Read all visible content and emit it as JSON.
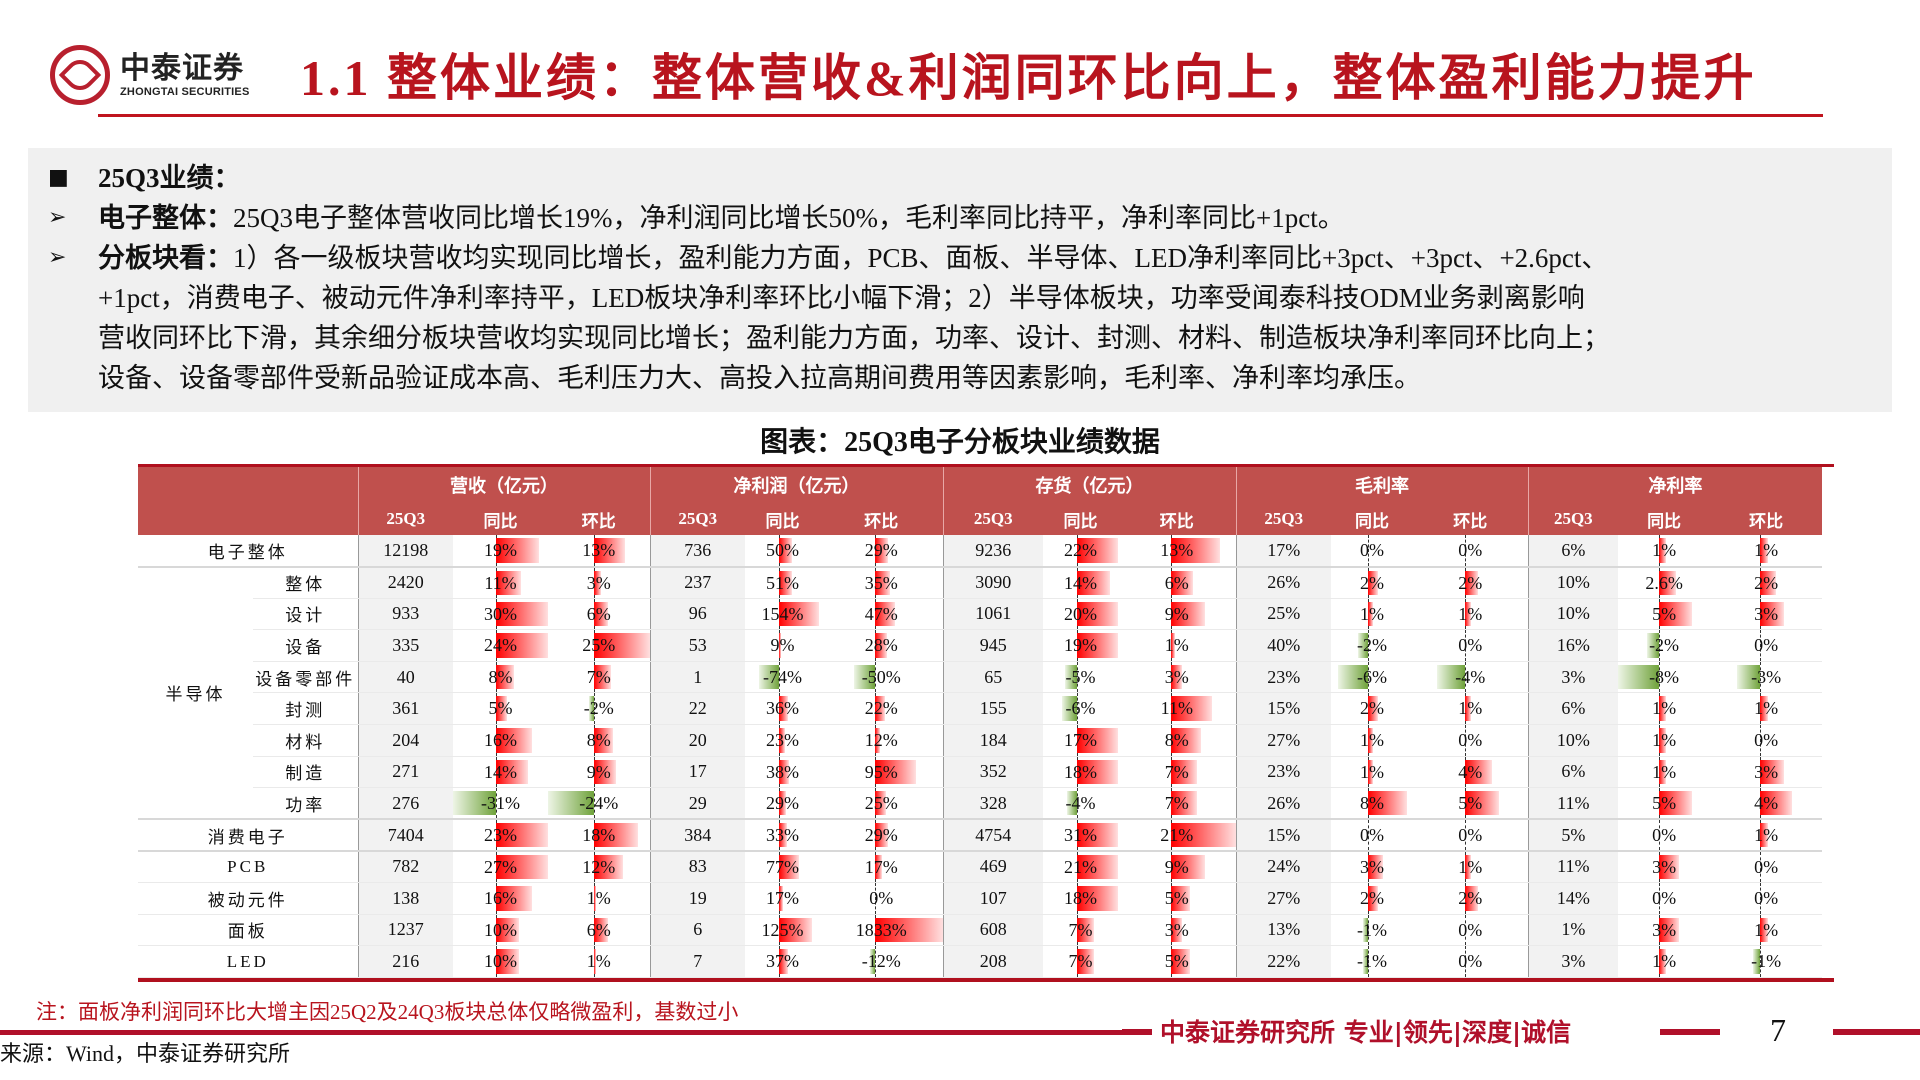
{
  "header": {
    "logo_cn": "中泰证券",
    "logo_en": "ZHONGTAI SECURITIES",
    "title": "1.1 整体业绩：整体营收&利润同环比向上，整体盈利能力提升"
  },
  "summary": {
    "heading": "25Q3业绩：",
    "items": [
      {
        "label": "电子整体：",
        "text": "25Q3电子整体营收同比增长19%，净利润同比增长50%，毛利率同比持平，净利率同比+1pct。"
      },
      {
        "label": "分板块看：",
        "lines": [
          "1）各一级板块营收均实现同比增长，盈利能力方面，PCB、面板、半导体、LED净利率同比+3pct、+3pct、+2.6pct、",
          "+1pct，消费电子、被动元件净利率持平，LED板块净利率环比小幅下滑；2）半导体板块，功率受闻泰科技ODM业务剥离影响",
          "营收同环比下滑，其余细分板块营收均实现同比增长；盈利能力方面，功率、设计、封测、材料、制造板块净利率同环比向上；",
          "设备、设备零部件受新品验证成本高、毛利压力大、高投入拉高期间费用等因素影响，毛利率、净利率均承压。"
        ]
      }
    ]
  },
  "chart_title": "图表：25Q3电子分板块业绩数据",
  "table": {
    "groups": [
      "营收（亿元）",
      "净利润（亿元）",
      "存货（亿元）",
      "毛利率",
      "净利率"
    ],
    "subheaders": [
      "25Q3",
      "同比",
      "环比"
    ],
    "rows": [
      {
        "name": "电子整体",
        "group": "",
        "major": true,
        "rev": [
          "12198",
          "19%",
          "13%"
        ],
        "np": [
          "736",
          "50%",
          "29%"
        ],
        "inv": [
          "9236",
          "22%",
          "13%"
        ],
        "gm": [
          "17%",
          "0%",
          "0%"
        ],
        "nm": [
          "6%",
          "1%",
          "1%"
        ]
      },
      {
        "name": "整体",
        "group": "半导体",
        "rev": [
          "2420",
          "11%",
          "3%"
        ],
        "np": [
          "237",
          "51%",
          "35%"
        ],
        "inv": [
          "3090",
          "14%",
          "6%"
        ],
        "gm": [
          "26%",
          "2%",
          "2%"
        ],
        "nm": [
          "10%",
          "2.6%",
          "2%"
        ]
      },
      {
        "name": "设计",
        "group": "半导体",
        "rev": [
          "933",
          "30%",
          "6%"
        ],
        "np": [
          "96",
          "154%",
          "47%"
        ],
        "inv": [
          "1061",
          "20%",
          "9%"
        ],
        "gm": [
          "25%",
          "1%",
          "1%"
        ],
        "nm": [
          "10%",
          "5%",
          "3%"
        ]
      },
      {
        "name": "设备",
        "group": "半导体",
        "rev": [
          "335",
          "24%",
          "25%"
        ],
        "np": [
          "53",
          "9%",
          "28%"
        ],
        "inv": [
          "945",
          "19%",
          "1%"
        ],
        "gm": [
          "40%",
          "-2%",
          "0%"
        ],
        "nm": [
          "16%",
          "-2%",
          "0%"
        ]
      },
      {
        "name": "设备零部件",
        "group": "半导体",
        "rev": [
          "40",
          "8%",
          "7%"
        ],
        "np": [
          "1",
          "-74%",
          "-50%"
        ],
        "inv": [
          "65",
          "-5%",
          "3%"
        ],
        "gm": [
          "23%",
          "-6%",
          "-4%"
        ],
        "nm": [
          "3%",
          "-8%",
          "-3%"
        ]
      },
      {
        "name": "封测",
        "group": "半导体",
        "rev": [
          "361",
          "5%",
          "-2%"
        ],
        "np": [
          "22",
          "36%",
          "22%"
        ],
        "inv": [
          "155",
          "-6%",
          "11%"
        ],
        "gm": [
          "15%",
          "2%",
          "1%"
        ],
        "nm": [
          "6%",
          "1%",
          "1%"
        ]
      },
      {
        "name": "材料",
        "group": "半导体",
        "rev": [
          "204",
          "16%",
          "8%"
        ],
        "np": [
          "20",
          "23%",
          "12%"
        ],
        "inv": [
          "184",
          "17%",
          "8%"
        ],
        "gm": [
          "27%",
          "1%",
          "0%"
        ],
        "nm": [
          "10%",
          "1%",
          "0%"
        ]
      },
      {
        "name": "制造",
        "group": "半导体",
        "rev": [
          "271",
          "14%",
          "9%"
        ],
        "np": [
          "17",
          "38%",
          "95%"
        ],
        "inv": [
          "352",
          "18%",
          "7%"
        ],
        "gm": [
          "23%",
          "1%",
          "4%"
        ],
        "nm": [
          "6%",
          "1%",
          "3%"
        ]
      },
      {
        "name": "功率",
        "group": "半导体",
        "major": true,
        "rev": [
          "276",
          "-31%",
          "-24%"
        ],
        "np": [
          "29",
          "29%",
          "25%"
        ],
        "inv": [
          "328",
          "-4%",
          "7%"
        ],
        "gm": [
          "26%",
          "8%",
          "5%"
        ],
        "nm": [
          "11%",
          "5%",
          "4%"
        ]
      },
      {
        "name": "消费电子",
        "group": "",
        "major": true,
        "rev": [
          "7404",
          "23%",
          "18%"
        ],
        "np": [
          "384",
          "33%",
          "29%"
        ],
        "inv": [
          "4754",
          "31%",
          "21%"
        ],
        "gm": [
          "15%",
          "0%",
          "0%"
        ],
        "nm": [
          "5%",
          "0%",
          "1%"
        ]
      },
      {
        "name": "PCB",
        "group": "",
        "rev": [
          "782",
          "27%",
          "12%"
        ],
        "np": [
          "83",
          "77%",
          "17%"
        ],
        "inv": [
          "469",
          "21%",
          "9%"
        ],
        "gm": [
          "24%",
          "3%",
          "1%"
        ],
        "nm": [
          "11%",
          "3%",
          "0%"
        ]
      },
      {
        "name": "被动元件",
        "group": "",
        "rev": [
          "138",
          "16%",
          "1%"
        ],
        "np": [
          "19",
          "17%",
          "0%"
        ],
        "inv": [
          "107",
          "18%",
          "5%"
        ],
        "gm": [
          "27%",
          "2%",
          "2%"
        ],
        "nm": [
          "14%",
          "0%",
          "0%"
        ]
      },
      {
        "name": "面板",
        "group": "",
        "rev": [
          "1237",
          "10%",
          "6%"
        ],
        "np": [
          "6",
          "125%",
          "1833%"
        ],
        "inv": [
          "608",
          "7%",
          "3%"
        ],
        "gm": [
          "13%",
          "-1%",
          "0%"
        ],
        "nm": [
          "1%",
          "3%",
          "1%"
        ]
      },
      {
        "name": "LED",
        "group": "",
        "rev": [
          "216",
          "10%",
          "1%"
        ],
        "np": [
          "7",
          "37%",
          "-12%"
        ],
        "inv": [
          "208",
          "7%",
          "5%"
        ],
        "gm": [
          "22%",
          "-1%",
          "0%"
        ],
        "nm": [
          "3%",
          "1%",
          "-1%"
        ]
      }
    ],
    "group_label": "半导体"
  },
  "note": "注：面板净利润同环比大增主因25Q2及24Q3板块总体仅略微盈利，基数过小",
  "source": "来源：Wind，中泰证券研究所",
  "footer": {
    "slogan": "中泰证券研究所 专业|领先|深度|诚信",
    "page_number": "7"
  },
  "colors": {
    "brand_red": "#b8141e",
    "header_fill": "#c0504d",
    "positive_bar": "#ff0000",
    "negative_bar": "#6fa23a",
    "summary_bg": "#f0f0f0"
  }
}
